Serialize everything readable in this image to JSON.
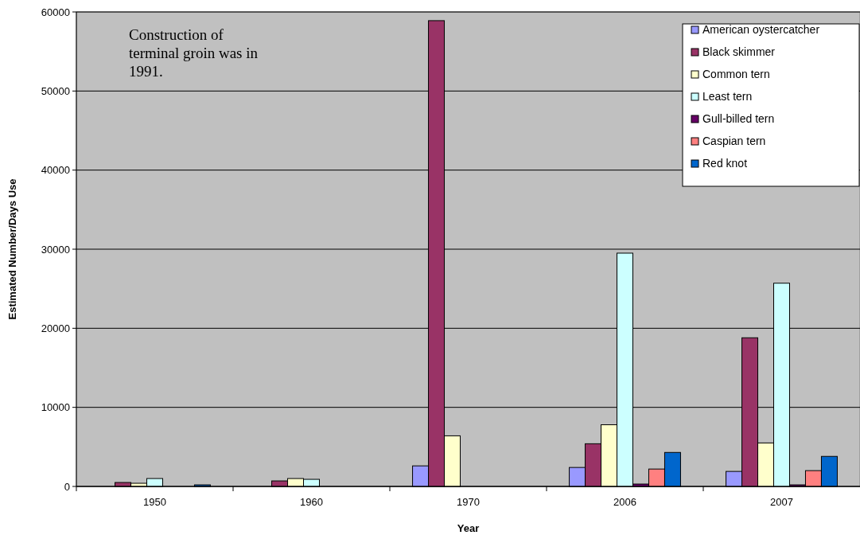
{
  "chart_data": {
    "type": "bar",
    "xlabel": "Year",
    "ylabel": "Estimated Number/Days Use",
    "categories": [
      "1950",
      "1960",
      "1970",
      "2006",
      "2007"
    ],
    "series": [
      {
        "name": "American oystercatcher",
        "color": "#9999ff",
        "values": [
          0,
          0,
          2600,
          2400,
          1900
        ]
      },
      {
        "name": "Black skimmer",
        "color": "#993366",
        "values": [
          500,
          700,
          58900,
          5400,
          18800
        ]
      },
      {
        "name": "Common tern",
        "color": "#ffffcc",
        "values": [
          400,
          1000,
          6400,
          7800,
          5500
        ]
      },
      {
        "name": "Least tern",
        "color": "#ccffff",
        "values": [
          1000,
          900,
          0,
          29500,
          25700
        ]
      },
      {
        "name": "Gull-billed tern",
        "color": "#660066",
        "values": [
          0,
          0,
          0,
          300,
          200
        ]
      },
      {
        "name": "Caspian tern",
        "color": "#ff8080",
        "values": [
          0,
          0,
          0,
          2200,
          2000
        ]
      },
      {
        "name": "Red knot",
        "color": "#0066cc",
        "values": [
          200,
          0,
          0,
          4300,
          3800
        ]
      }
    ],
    "ylim": [
      0,
      60000
    ],
    "yticks": [
      0,
      10000,
      20000,
      30000,
      40000,
      50000,
      60000
    ],
    "grid": "y",
    "legend": "top right",
    "annotations": [
      "Construction of terminal groin was in 1991."
    ]
  }
}
